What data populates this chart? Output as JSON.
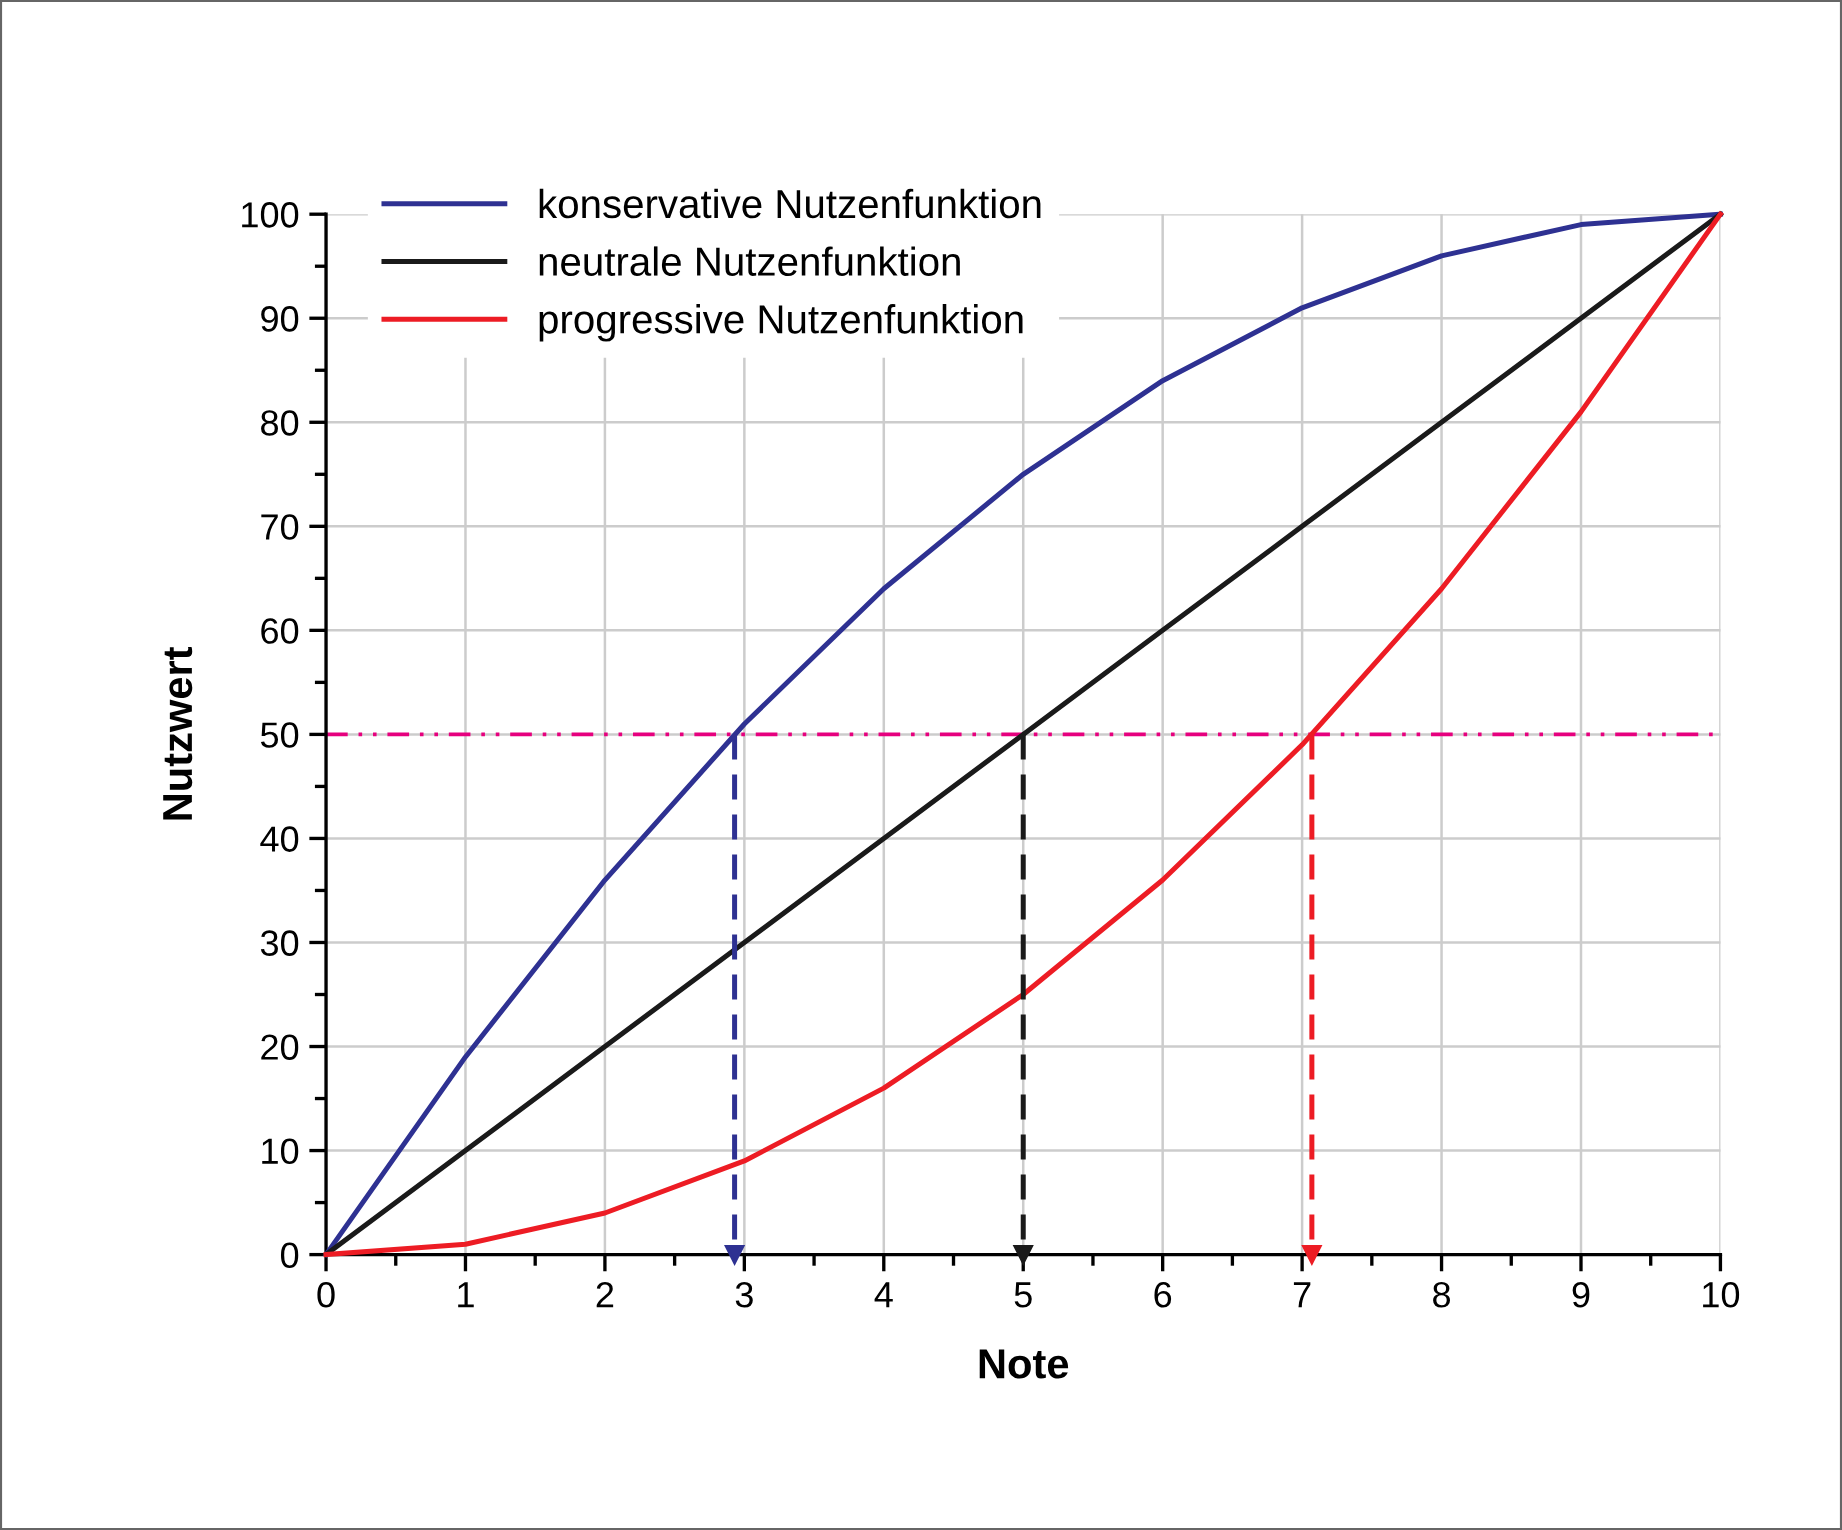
{
  "chart_data": {
    "type": "line",
    "xlabel": "Note",
    "ylabel": "Nutzwert",
    "x": [
      0,
      1,
      2,
      3,
      4,
      5,
      6,
      7,
      8,
      9,
      10
    ],
    "series": [
      {
        "name": "konservative Nutzenfunktion",
        "color": "#2e3192",
        "values": [
          0,
          19,
          36,
          51,
          64,
          75,
          84,
          91,
          96,
          99,
          100
        ]
      },
      {
        "name": "neutrale Nutzenfunktion",
        "color": "#1a1a1a",
        "values": [
          0,
          10,
          20,
          30,
          40,
          50,
          60,
          70,
          80,
          90,
          100
        ]
      },
      {
        "name": "progressive Nutzenfunktion",
        "color": "#ed1c24",
        "values": [
          0,
          1,
          4,
          9,
          16,
          25,
          36,
          49,
          64,
          81,
          100
        ]
      },
      {
        "color": "#2e3192",
        "x": [
          2.93,
          2.93
        ],
        "values": [
          50,
          0
        ],
        "line_style": "dashed",
        "marker": "triangle"
      },
      {
        "color": "#1a1a1a",
        "x": [
          5,
          5
        ],
        "values": [
          50,
          0
        ],
        "line_style": "dashed",
        "marker": "triangle"
      },
      {
        "color": "#ed1c24",
        "x": [
          7.07,
          7.07
        ],
        "values": [
          50,
          0
        ],
        "line_style": "dashed",
        "marker": "triangle"
      }
    ],
    "ref_lines": [
      {
        "axis": "y",
        "value": 50,
        "color": "#e6007e",
        "line_style": "dashdot"
      }
    ],
    "xlim": [
      0,
      10
    ],
    "xticks": [
      0,
      1,
      2,
      3,
      4,
      5,
      6,
      7,
      8,
      9,
      10
    ],
    "ylim": [
      0,
      100
    ],
    "yticks": [
      0,
      10,
      20,
      30,
      40,
      50,
      60,
      70,
      80,
      90,
      100
    ],
    "grid": true,
    "legend": "top left"
  }
}
